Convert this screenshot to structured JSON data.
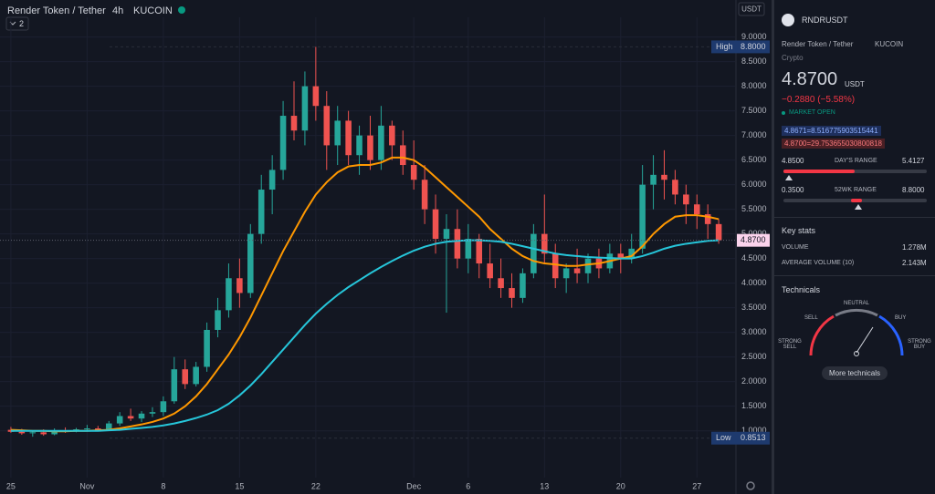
{
  "header": {
    "symbol": "Render Token / Tether",
    "interval": "4h",
    "exchange": "KUCOIN",
    "indicators": "2"
  },
  "chart_data": {
    "type": "candlestick",
    "y_unit": "USDT",
    "up_color": "#26a69a",
    "down_color": "#ef5350",
    "grid": true,
    "open": [
      1.02,
      0.98,
      0.95,
      0.97,
      0.93,
      1.01,
      1.0,
      1.03,
      1.05,
      1.02,
      1.15,
      1.3,
      1.25,
      1.35,
      1.38,
      1.6,
      2.25,
      1.95,
      2.3,
      3.05,
      3.45,
      4.1,
      3.8,
      5.0,
      5.9,
      6.3,
      7.4,
      7.1,
      8.0,
      7.6,
      6.8,
      7.3,
      6.6,
      7.0,
      6.5,
      7.2,
      6.8,
      6.4,
      6.1,
      5.5,
      4.9,
      5.1,
      4.5,
      4.9,
      4.4,
      4.1,
      3.9,
      3.7,
      4.2,
      5.0,
      4.6,
      4.1,
      4.3,
      4.2,
      4.5,
      4.3,
      4.6,
      4.5,
      4.7,
      6.0,
      6.2,
      6.1,
      5.8,
      5.6,
      5.4,
      5.2
    ],
    "high": [
      1.08,
      1.04,
      1.0,
      1.03,
      1.05,
      1.07,
      1.06,
      1.12,
      1.1,
      1.2,
      1.38,
      1.45,
      1.4,
      1.48,
      1.7,
      2.5,
      2.45,
      2.4,
      3.2,
      3.7,
      4.4,
      4.5,
      5.2,
      6.2,
      6.6,
      7.7,
      8.1,
      8.3,
      8.8,
      7.9,
      7.6,
      7.5,
      7.2,
      7.4,
      7.6,
      7.3,
      7.1,
      6.9,
      6.4,
      5.8,
      5.4,
      5.5,
      5.2,
      5.0,
      4.8,
      4.5,
      4.2,
      4.3,
      5.2,
      5.8,
      4.8,
      4.4,
      4.7,
      4.6,
      4.7,
      4.8,
      4.8,
      5.0,
      6.4,
      6.6,
      6.7,
      6.3,
      6.0,
      5.8,
      5.6,
      5.3
    ],
    "low": [
      0.96,
      0.92,
      0.88,
      0.9,
      0.91,
      0.96,
      0.97,
      0.99,
      1.0,
      1.0,
      1.1,
      1.2,
      1.18,
      1.28,
      1.3,
      1.55,
      1.85,
      1.9,
      2.2,
      2.9,
      3.3,
      3.5,
      3.7,
      4.8,
      5.4,
      6.1,
      6.9,
      6.8,
      7.3,
      6.3,
      6.4,
      6.4,
      6.2,
      6.3,
      6.3,
      6.5,
      6.2,
      5.9,
      5.2,
      4.6,
      3.4,
      4.3,
      4.2,
      4.1,
      3.9,
      3.7,
      3.5,
      3.6,
      4.1,
      4.4,
      3.9,
      3.8,
      4.0,
      4.0,
      4.1,
      4.2,
      4.2,
      4.4,
      4.6,
      5.5,
      5.7,
      5.6,
      5.2,
      5.1,
      4.9,
      4.8
    ],
    "close": [
      0.98,
      0.95,
      0.97,
      0.93,
      1.01,
      1.0,
      1.03,
      1.05,
      1.02,
      1.15,
      1.3,
      1.25,
      1.35,
      1.38,
      1.6,
      2.25,
      1.95,
      2.3,
      3.05,
      3.45,
      4.1,
      3.8,
      5.0,
      5.9,
      6.3,
      7.4,
      7.1,
      8.0,
      7.6,
      6.8,
      7.3,
      6.6,
      7.0,
      6.5,
      7.2,
      6.8,
      6.4,
      6.1,
      5.5,
      4.9,
      5.1,
      4.5,
      4.9,
      4.4,
      4.1,
      3.9,
      3.7,
      4.2,
      5.0,
      4.6,
      4.1,
      4.3,
      4.2,
      4.5,
      4.3,
      4.6,
      4.5,
      4.7,
      6.0,
      6.2,
      6.1,
      5.8,
      5.6,
      5.4,
      5.2,
      4.87
    ],
    "series": [
      {
        "color": "#ff9800",
        "values": [
          1.02,
          1.01,
          1.0,
          1.0,
          0.99,
          0.99,
          1.0,
          1.0,
          1.01,
          1.02,
          1.05,
          1.09,
          1.13,
          1.18,
          1.25,
          1.35,
          1.5,
          1.7,
          1.95,
          2.25,
          2.55,
          2.9,
          3.3,
          3.75,
          4.2,
          4.65,
          5.05,
          5.45,
          5.8,
          6.05,
          6.25,
          6.37,
          6.4,
          6.4,
          6.45,
          6.55,
          6.55,
          6.5,
          6.35,
          6.15,
          5.95,
          5.75,
          5.55,
          5.35,
          5.1,
          4.9,
          4.7,
          4.55,
          4.45,
          4.4,
          4.38,
          4.35,
          4.35,
          4.38,
          4.4,
          4.45,
          4.5,
          4.55,
          4.75,
          5.0,
          5.2,
          5.35,
          5.38,
          5.38,
          5.35,
          5.3
        ]
      },
      {
        "color": "#26c6da",
        "values": [
          1.0,
          1.0,
          1.0,
          1.0,
          1.0,
          1.0,
          1.0,
          1.0,
          1.0,
          1.01,
          1.02,
          1.04,
          1.06,
          1.08,
          1.11,
          1.15,
          1.2,
          1.26,
          1.33,
          1.42,
          1.55,
          1.72,
          1.92,
          2.15,
          2.4,
          2.65,
          2.9,
          3.15,
          3.38,
          3.58,
          3.76,
          3.92,
          4.06,
          4.2,
          4.33,
          4.45,
          4.56,
          4.66,
          4.74,
          4.8,
          4.84,
          4.86,
          4.87,
          4.87,
          4.86,
          4.84,
          4.8,
          4.75,
          4.7,
          4.65,
          4.6,
          4.57,
          4.55,
          4.53,
          4.52,
          4.51,
          4.5,
          4.5,
          4.55,
          4.62,
          4.7,
          4.76,
          4.8,
          4.83,
          4.86,
          4.87
        ]
      }
    ],
    "xlim": [
      -1,
      66.5
    ],
    "xticks": [
      {
        "value": 0,
        "label": "25"
      },
      {
        "value": 7,
        "label": "Nov"
      },
      {
        "value": 14,
        "label": "8"
      },
      {
        "value": 21,
        "label": "15"
      },
      {
        "value": 28,
        "label": "22"
      },
      {
        "value": 37,
        "label": "Dec"
      },
      {
        "value": 42,
        "label": "6"
      },
      {
        "value": 49,
        "label": "13"
      },
      {
        "value": 56,
        "label": "20"
      },
      {
        "value": 63,
        "label": "27"
      }
    ],
    "ylim": [
      0.05,
      9.4
    ],
    "yticks": [
      {
        "value": 1,
        "label": "1.0000"
      },
      {
        "value": 1.5,
        "label": "1.5000"
      },
      {
        "value": 2,
        "label": "2.0000"
      },
      {
        "value": 2.5,
        "label": "2.5000"
      },
      {
        "value": 3,
        "label": "3.0000"
      },
      {
        "value": 3.5,
        "label": "3.5000"
      },
      {
        "value": 4,
        "label": "4.0000"
      },
      {
        "value": 4.5,
        "label": "4.5000"
      },
      {
        "value": 5,
        "label": "5.0000"
      },
      {
        "value": 5.5,
        "label": "5.5000"
      },
      {
        "value": 6,
        "label": "6.0000"
      },
      {
        "value": 6.5,
        "label": "6.5000"
      },
      {
        "value": 7,
        "label": "7.0000"
      },
      {
        "value": 7.5,
        "label": "7.5000"
      },
      {
        "value": 8,
        "label": "8.0000"
      },
      {
        "value": 8.5,
        "label": "8.5000"
      },
      {
        "value": 9,
        "label": "9.0000"
      }
    ],
    "markers": [
      {
        "name": "High",
        "value": 8.8,
        "label": "8.8000"
      },
      {
        "name": "Low",
        "value": 0.8513,
        "label": "0.8513"
      }
    ],
    "last": {
      "value": 4.87,
      "label": "4.8700"
    }
  },
  "sidebar": {
    "symbol": "RNDRUSDT",
    "name": "Render Token / Tether",
    "exchange": "KUCOIN",
    "category": "Crypto",
    "price": "4.8700",
    "currency": "USDT",
    "change": "−0.2880 (−5.58%)",
    "status": "MARKET OPEN",
    "quotes": [
      "4.8671=8.516775903515441",
      "4.8700=29.753655030800818"
    ],
    "days_range": {
      "low": "4.8500",
      "label": "DAY'S RANGE",
      "high": "5.4127"
    },
    "week52_range": {
      "low": "0.3500",
      "label": "52WK RANGE",
      "high": "8.8000"
    },
    "key_stats": {
      "title": "Key stats",
      "rows": [
        [
          "VOLUME",
          "1.278M"
        ],
        [
          "AVERAGE VOLUME (10)",
          "2.143M"
        ]
      ]
    },
    "technicals": {
      "title": "Technicals",
      "sell": "SELL",
      "neutral": "NEUTRAL",
      "buy": "BUY",
      "strong_sell": "STRONG SELL",
      "strong_buy": "STRONG BUY",
      "button": "More technicals"
    }
  }
}
